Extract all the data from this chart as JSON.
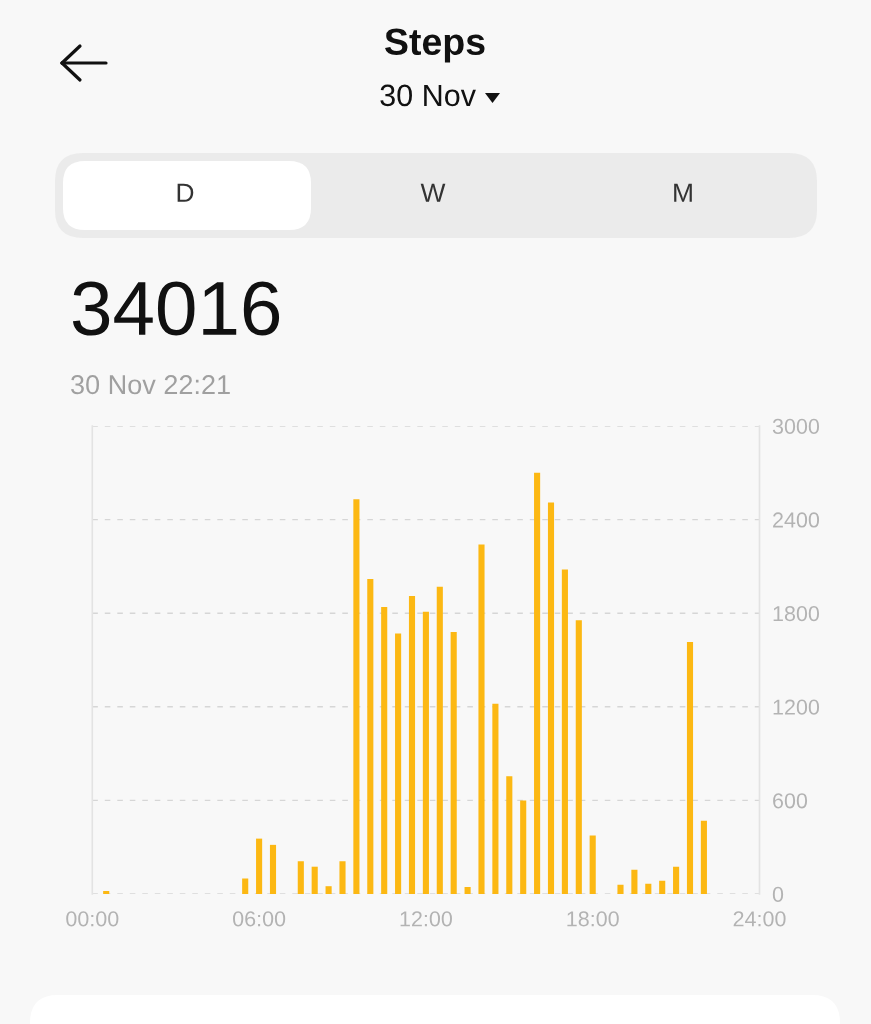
{
  "chart_data": {
    "type": "bar",
    "title": "Steps",
    "subtitle": "30 Nov",
    "annotations": [
      "D",
      "W",
      "M",
      "34016",
      "30 Nov 22:21"
    ],
    "x": [
      0.5,
      5.5,
      6,
      6.5,
      7.5,
      8,
      8.5,
      9,
      9.5,
      10,
      10.5,
      11,
      11.5,
      12,
      12.5,
      13,
      13.5,
      14,
      14.5,
      15,
      15.5,
      16,
      16.5,
      17,
      17.5,
      18,
      19,
      19.5,
      20,
      20.5,
      21,
      21.5,
      22
    ],
    "values": [
      20,
      100,
      355,
      315,
      210,
      175,
      50,
      210,
      2530,
      2020,
      1840,
      1670,
      1910,
      1810,
      1970,
      1680,
      45,
      2240,
      1220,
      755,
      600,
      2700,
      2510,
      2080,
      1755,
      375,
      60,
      155,
      65,
      85,
      175,
      1615,
      470
    ],
    "color": "#fcb813",
    "xlim": [
      0,
      24
    ],
    "xticks": [
      {
        "value": 0,
        "label": "00:00"
      },
      {
        "value": 6,
        "label": "06:00"
      },
      {
        "value": 12,
        "label": "12:00"
      },
      {
        "value": 18,
        "label": "18:00"
      },
      {
        "value": 24,
        "label": "24:00"
      }
    ],
    "ylim": [
      0,
      3000
    ],
    "yticks": [
      0,
      600,
      1200,
      1800,
      2400,
      3000
    ],
    "grid": "y"
  }
}
